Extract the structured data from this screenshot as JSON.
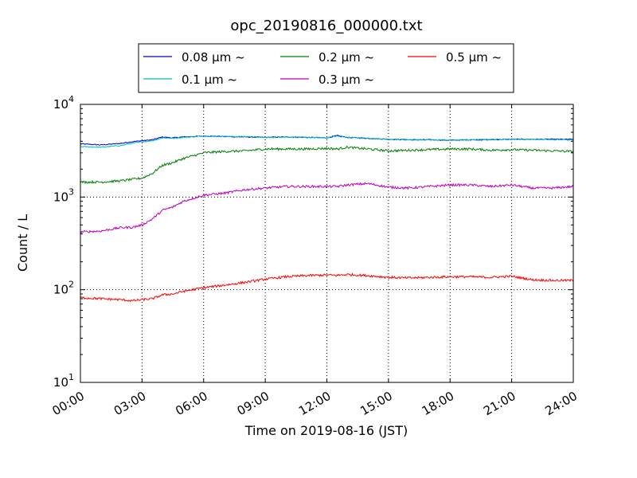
{
  "chart_data": {
    "type": "line",
    "title": "opc_20190816_000000.txt",
    "xlabel": "Time on 2019-08-16 (JST)",
    "ylabel": "Count / L",
    "x_unit": "hours",
    "xlim": [
      0,
      24
    ],
    "ylim": [
      10,
      10000
    ],
    "y_scale": "log",
    "x_ticks": [
      0,
      3,
      6,
      9,
      12,
      15,
      18,
      21,
      24
    ],
    "x_tick_labels": [
      "00:00",
      "03:00",
      "06:00",
      "09:00",
      "12:00",
      "15:00",
      "18:00",
      "21:00",
      "24:00"
    ],
    "y_ticks": [
      10,
      100,
      1000,
      10000
    ],
    "y_tick_labels": [
      {
        "base": "10",
        "exp": "1"
      },
      {
        "base": "10",
        "exp": "2"
      },
      {
        "base": "10",
        "exp": "3"
      },
      {
        "base": "10",
        "exp": "4"
      }
    ],
    "grid": true,
    "legend_position": "top-center",
    "legend_columns": 3,
    "x": [
      0,
      1,
      2,
      2.5,
      3,
      3.5,
      4,
      4.5,
      5,
      6,
      7,
      8,
      9,
      10,
      11,
      12,
      12.5,
      13,
      14,
      15,
      16,
      17,
      18,
      19,
      20,
      21,
      22,
      23,
      24
    ],
    "series": [
      {
        "name": "0.08 μm ~",
        "color": "#0000cc",
        "values": [
          3750,
          3650,
          3800,
          3950,
          4050,
          4150,
          4450,
          4350,
          4450,
          4550,
          4500,
          4450,
          4400,
          4450,
          4400,
          4350,
          4600,
          4400,
          4300,
          4200,
          4150,
          4150,
          4100,
          4150,
          4150,
          4200,
          4200,
          4200,
          4200
        ]
      },
      {
        "name": "0.1 μm ~",
        "color": "#00bfbf",
        "values": [
          3500,
          3450,
          3600,
          3800,
          3950,
          4050,
          4350,
          4300,
          4400,
          4550,
          4500,
          4500,
          4400,
          4450,
          4400,
          4350,
          4550,
          4400,
          4300,
          4200,
          4150,
          4150,
          4100,
          4150,
          4200,
          4200,
          4200,
          4150,
          4150
        ]
      },
      {
        "name": "0.2 μm ~",
        "color": "#008000",
        "values": [
          1450,
          1450,
          1500,
          1550,
          1600,
          1800,
          2200,
          2350,
          2600,
          3000,
          3100,
          3150,
          3300,
          3300,
          3300,
          3350,
          3300,
          3450,
          3300,
          3150,
          3200,
          3250,
          3300,
          3300,
          3200,
          3250,
          3200,
          3150,
          3100
        ]
      },
      {
        "name": "0.3 μm ~",
        "color": "#bf00bf",
        "values": [
          420,
          430,
          470,
          470,
          500,
          580,
          720,
          780,
          900,
          1050,
          1100,
          1200,
          1250,
          1300,
          1300,
          1300,
          1300,
          1350,
          1400,
          1280,
          1250,
          1300,
          1350,
          1350,
          1300,
          1350,
          1250,
          1250,
          1300
        ]
      },
      {
        "name": "0.5 μm ~",
        "color": "#ff0000",
        "values": [
          82,
          80,
          78,
          76,
          78,
          80,
          88,
          90,
          96,
          105,
          112,
          120,
          130,
          138,
          142,
          144,
          143,
          146,
          142,
          136,
          134,
          136,
          138,
          138,
          136,
          140,
          128,
          126,
          126
        ]
      }
    ]
  }
}
